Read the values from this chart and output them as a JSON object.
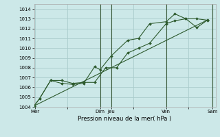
{
  "title": "",
  "xlabel": "Pression niveau de la mer( hPa )",
  "bg_color": "#cce8e8",
  "grid_color": "#aacccc",
  "line_color": "#2d5a2d",
  "vline_color": "#3a5a3a",
  "ylim": [
    1004,
    1014.5
  ],
  "yticks": [
    1004,
    1005,
    1006,
    1007,
    1008,
    1009,
    1010,
    1011,
    1012,
    1013,
    1014
  ],
  "xlim": [
    0,
    16.5
  ],
  "xtick_labels": [
    "Mer",
    "",
    "Dim",
    "Jeu",
    "",
    "Ven",
    "",
    "Sam"
  ],
  "xtick_positions": [
    0.1,
    3,
    6.0,
    7.0,
    9,
    12.0,
    14,
    16.2
  ],
  "line1_x": [
    0,
    0.5,
    1.5,
    2.5,
    3.5,
    4.5,
    5.5,
    6.5,
    7.5,
    8.5,
    9.5,
    10.5,
    12,
    12.8,
    13.8,
    14.8,
    15.8
  ],
  "line1_y": [
    1004.1,
    1004.85,
    1006.7,
    1006.7,
    1006.4,
    1006.5,
    1006.5,
    1008.0,
    1008.0,
    1009.5,
    1010.0,
    1010.5,
    1012.5,
    1012.8,
    1013.0,
    1012.1,
    1012.9
  ],
  "line2_x": [
    0,
    0.5,
    1.5,
    2.5,
    3.5,
    4.5,
    5.5,
    6.0,
    7.0,
    8.5,
    9.5,
    10.5,
    12,
    12.8,
    13.8,
    14.8,
    15.8
  ],
  "line2_y": [
    1004.1,
    1004.85,
    1006.7,
    1006.4,
    1006.3,
    1006.4,
    1008.1,
    1007.8,
    1009.2,
    1010.8,
    1011.0,
    1012.5,
    1012.7,
    1013.5,
    1013.0,
    1013.0,
    1012.85
  ],
  "line3_x": [
    0,
    15.8
  ],
  "line3_y": [
    1004.1,
    1012.9
  ],
  "vline_positions": [
    6.0,
    7.0,
    12.0,
    16.2
  ],
  "marker": "D",
  "markersize": 2.0
}
